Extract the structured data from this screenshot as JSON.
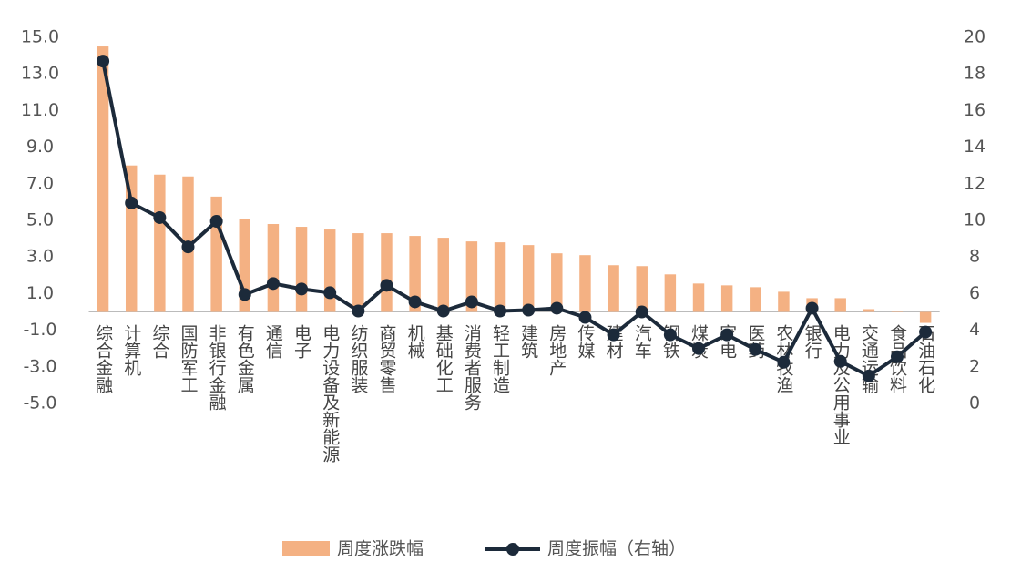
{
  "chart_data": {
    "type": "combo",
    "categories": [
      "综合金融",
      "计算机",
      "综合",
      "国防军工",
      "非银行金融",
      "有色金属",
      "通信",
      "电子",
      "电力设备及新能源",
      "纺织服装",
      "商贸零售",
      "机械",
      "基础化工",
      "消费者服务",
      "轻工制造",
      "建筑",
      "房地产",
      "传媒",
      "建材",
      "汽车",
      "钢铁",
      "煤炭",
      "家电",
      "医药",
      "农林牧渔",
      "银行",
      "电力及公用事业",
      "交通运输",
      "食品饮料",
      "石油石化"
    ],
    "series": [
      {
        "name": "周度涨跌幅",
        "type": "bar",
        "color": "#f4b183",
        "values": [
          14.5,
          8.0,
          7.5,
          7.4,
          6.3,
          5.1,
          4.8,
          4.65,
          4.5,
          4.3,
          4.3,
          4.15,
          4.05,
          3.85,
          3.8,
          3.65,
          3.2,
          3.1,
          2.55,
          2.5,
          2.05,
          1.55,
          1.45,
          1.35,
          1.1,
          0.75,
          0.75,
          0.15,
          0.05,
          -0.6
        ]
      },
      {
        "name": "周度振幅（右轴）",
        "type": "line",
        "axis": "y2",
        "color": "#1c2a3a",
        "values": [
          18.7,
          10.95,
          10.15,
          8.55,
          9.95,
          5.95,
          6.55,
          6.25,
          6.05,
          5.05,
          6.45,
          5.55,
          5.05,
          5.55,
          5.05,
          5.1,
          5.2,
          4.7,
          3.75,
          5.0,
          3.75,
          3.0,
          3.75,
          2.95,
          2.25,
          5.2,
          2.3,
          1.5,
          2.55,
          3.9
        ]
      }
    ],
    "ylim": [
      -5,
      15
    ],
    "yticks": [
      {
        "value": -5,
        "label": "-5.0"
      },
      {
        "value": -3,
        "label": "-3.0"
      },
      {
        "value": -1,
        "label": "-1.0"
      },
      {
        "value": 1,
        "label": "1.0"
      },
      {
        "value": 3,
        "label": "3.0"
      },
      {
        "value": 5,
        "label": "5.0"
      },
      {
        "value": 7,
        "label": "7.0"
      },
      {
        "value": 9,
        "label": "9.0"
      },
      {
        "value": 11,
        "label": "11.0"
      },
      {
        "value": 13,
        "label": "13.0"
      },
      {
        "value": 15,
        "label": "15.0"
      }
    ],
    "y2lim": [
      0,
      20
    ],
    "y2ticks": [
      0,
      2,
      4,
      6,
      8,
      10,
      12,
      14,
      16,
      18,
      20
    ],
    "grid": false,
    "legend": "bottom"
  }
}
